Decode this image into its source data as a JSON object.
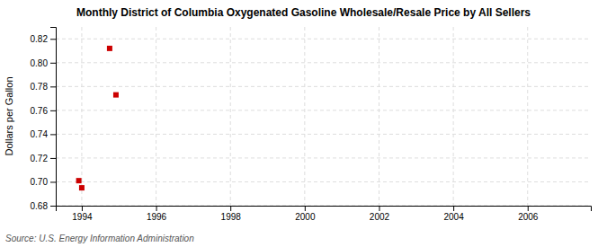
{
  "chart_data": {
    "type": "scatter",
    "title": "Monthly District of Columbia Oxygenated Gasoline Wholesale/Resale Price by All Sellers",
    "ylabel": "Dollars per Gallon",
    "source": "Source: U.S. Energy Information Administration",
    "x": [
      1993.92,
      1994.0,
      1994.75,
      1994.92
    ],
    "values": [
      0.701,
      0.695,
      0.812,
      0.773
    ],
    "color": "#cc0000",
    "marker": "square",
    "xlim": [
      1993.3,
      2007.7
    ],
    "ylim": [
      0.68,
      0.83
    ],
    "xticks": [
      1994,
      1996,
      1998,
      2000,
      2002,
      2004,
      2006
    ],
    "yticks": [
      0.68,
      {
        "value": 0.7,
        "label": "0.70"
      },
      0.72,
      0.74,
      0.76,
      0.78,
      {
        "value": 0.8,
        "label": "0.80"
      },
      0.82
    ],
    "grid": true
  }
}
